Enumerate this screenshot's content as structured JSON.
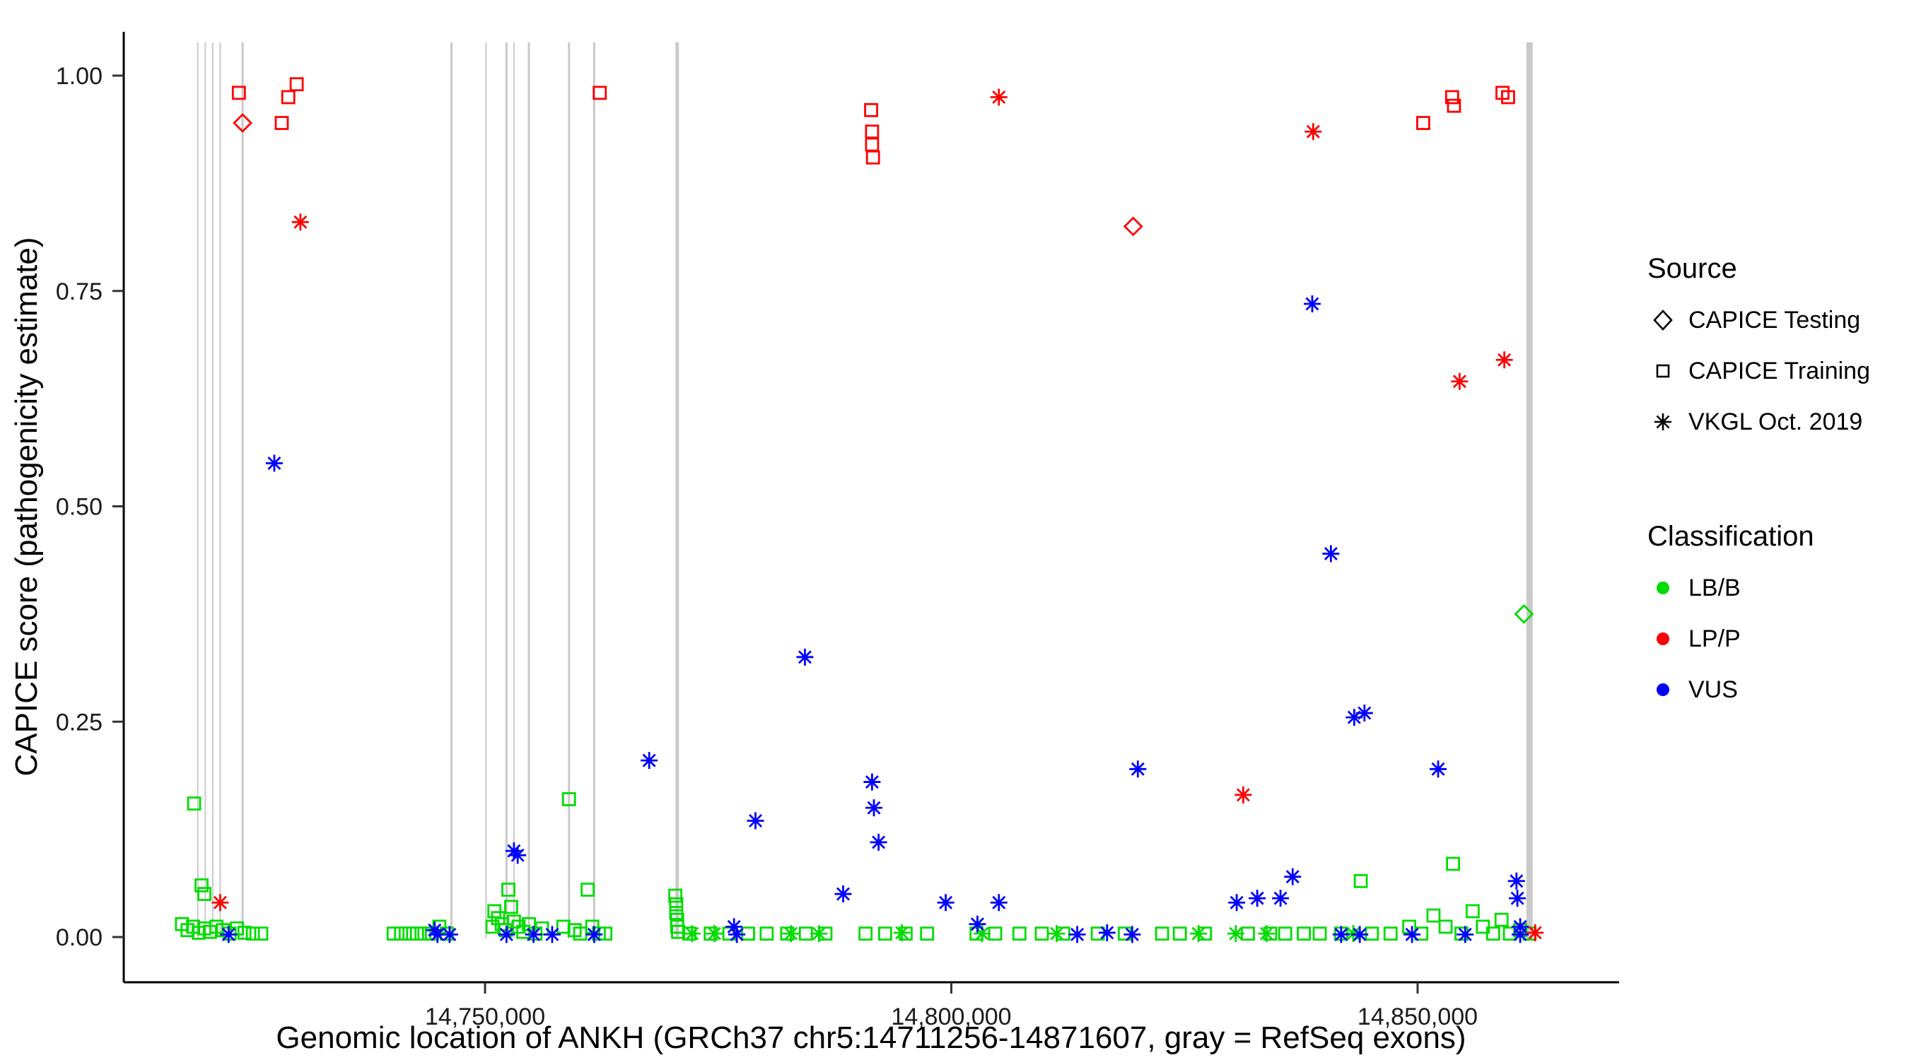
{
  "legend": {
    "source": {
      "title": "Source",
      "items": [
        {
          "label": "CAPICE Testing",
          "shape": "diamond"
        },
        {
          "label": "CAPICE Training",
          "shape": "square"
        },
        {
          "label": "VKGL Oct. 2019",
          "shape": "asterisk"
        }
      ]
    },
    "classification": {
      "title": "Classification",
      "items": [
        {
          "label": "LB/B",
          "color": "#00DC00"
        },
        {
          "label": "LP/P",
          "color": "#FF0000"
        },
        {
          "label": "VUS",
          "color": "#0000FF"
        }
      ]
    }
  },
  "chart_data": {
    "type": "scatter",
    "title": "",
    "xlabel": "Genomic location of ANKH (GRCh37 chr5:14711256-14871607, gray = RefSeq exons)",
    "ylabel": "CAPICE score (pathogenicity estimate)",
    "xlim": [
      14711256,
      14871607
    ],
    "ylim": [
      0,
      1
    ],
    "grid": false,
    "legend_position": "right",
    "x_ticks": [
      {
        "value": 14750000,
        "label": "14,750,000"
      },
      {
        "value": 14800000,
        "label": "14,800,000"
      },
      {
        "value": 14850000,
        "label": "14,850,000"
      }
    ],
    "y_ticks": [
      {
        "value": 0.0,
        "label": "0.00"
      },
      {
        "value": 0.25,
        "label": "0.25"
      },
      {
        "value": 0.5,
        "label": "0.50"
      },
      {
        "value": 0.75,
        "label": "0.75"
      },
      {
        "value": 1.0,
        "label": "1.00"
      }
    ],
    "exon_color": "#C9C9C9",
    "exons": [
      {
        "pos": 14719200,
        "width": 2
      },
      {
        "pos": 14720000,
        "width": 2
      },
      {
        "pos": 14720800,
        "width": 2
      },
      {
        "pos": 14721600,
        "width": 2
      },
      {
        "pos": 14724000,
        "width": 3
      },
      {
        "pos": 14746400,
        "width": 3
      },
      {
        "pos": 14750100,
        "width": 2
      },
      {
        "pos": 14752300,
        "width": 3
      },
      {
        "pos": 14753100,
        "width": 2
      },
      {
        "pos": 14754700,
        "width": 3
      },
      {
        "pos": 14759000,
        "width": 3
      },
      {
        "pos": 14761700,
        "width": 3
      },
      {
        "pos": 14770600,
        "width": 5
      },
      {
        "pos": 14862000,
        "width": 9
      }
    ],
    "series": [
      {
        "id": "training-lbb",
        "source": "CAPICE Training",
        "classification": "LB/B",
        "shape": "square",
        "color": "#00DC00",
        "points": [
          [
            14718800,
            0.155
          ],
          [
            14719600,
            0.06
          ],
          [
            14719900,
            0.05
          ],
          [
            14717500,
            0.015
          ],
          [
            14718100,
            0.008
          ],
          [
            14718700,
            0.012
          ],
          [
            14719300,
            0.005
          ],
          [
            14719900,
            0.01
          ],
          [
            14720500,
            0.006
          ],
          [
            14721200,
            0.012
          ],
          [
            14721900,
            0.008
          ],
          [
            14722600,
            0.004
          ],
          [
            14723400,
            0.01
          ],
          [
            14724200,
            0.005
          ],
          [
            14725100,
            0.004
          ],
          [
            14726000,
            0.004
          ],
          [
            14740200,
            0.004
          ],
          [
            14741000,
            0.004
          ],
          [
            14741900,
            0.004
          ],
          [
            14742700,
            0.004
          ],
          [
            14743500,
            0.004
          ],
          [
            14744300,
            0.004
          ],
          [
            14745100,
            0.012
          ],
          [
            14745900,
            0.004
          ],
          [
            14750800,
            0.012
          ],
          [
            14751000,
            0.03
          ],
          [
            14751400,
            0.022
          ],
          [
            14751800,
            0.015
          ],
          [
            14752200,
            0.008
          ],
          [
            14752500,
            0.055
          ],
          [
            14752800,
            0.035
          ],
          [
            14753100,
            0.018
          ],
          [
            14753600,
            0.012
          ],
          [
            14754100,
            0.006
          ],
          [
            14754700,
            0.015
          ],
          [
            14755400,
            0.004
          ],
          [
            14756100,
            0.01
          ],
          [
            14758400,
            0.012
          ],
          [
            14759000,
            0.16
          ],
          [
            14759600,
            0.008
          ],
          [
            14760200,
            0.004
          ],
          [
            14761000,
            0.055
          ],
          [
            14761500,
            0.012
          ],
          [
            14762200,
            0.004
          ],
          [
            14762900,
            0.004
          ],
          [
            14770400,
            0.048
          ],
          [
            14770500,
            0.038
          ],
          [
            14770500,
            0.028
          ],
          [
            14770600,
            0.02
          ],
          [
            14770600,
            0.012
          ],
          [
            14770700,
            0.006
          ],
          [
            14771900,
            0.004
          ],
          [
            14774200,
            0.004
          ],
          [
            14776200,
            0.004
          ],
          [
            14778200,
            0.004
          ],
          [
            14780200,
            0.004
          ],
          [
            14782400,
            0.004
          ],
          [
            14784400,
            0.004
          ],
          [
            14786500,
            0.004
          ],
          [
            14790800,
            0.004
          ],
          [
            14792900,
            0.004
          ],
          [
            14795100,
            0.004
          ],
          [
            14797400,
            0.004
          ],
          [
            14802700,
            0.004
          ],
          [
            14804700,
            0.004
          ],
          [
            14807300,
            0.004
          ],
          [
            14809700,
            0.004
          ],
          [
            14812000,
            0.004
          ],
          [
            14815700,
            0.004
          ],
          [
            14818600,
            0.004
          ],
          [
            14822600,
            0.004
          ],
          [
            14824500,
            0.004
          ],
          [
            14827200,
            0.004
          ],
          [
            14831800,
            0.004
          ],
          [
            14834200,
            0.004
          ],
          [
            14835800,
            0.004
          ],
          [
            14837800,
            0.004
          ],
          [
            14839500,
            0.004
          ],
          [
            14841800,
            0.004
          ],
          [
            14843900,
            0.065
          ],
          [
            14845100,
            0.004
          ],
          [
            14847100,
            0.004
          ],
          [
            14849100,
            0.012
          ],
          [
            14850400,
            0.004
          ],
          [
            14851700,
            0.025
          ],
          [
            14853000,
            0.012
          ],
          [
            14853800,
            0.085
          ],
          [
            14854700,
            0.004
          ],
          [
            14855900,
            0.03
          ],
          [
            14857000,
            0.012
          ],
          [
            14858100,
            0.004
          ],
          [
            14859000,
            0.02
          ],
          [
            14859900,
            0.004
          ],
          [
            14861000,
            0.008
          ],
          [
            14862000,
            0.004
          ]
        ]
      },
      {
        "id": "vkgl-lbb",
        "source": "VKGL Oct. 2019",
        "classification": "LB/B",
        "shape": "asterisk",
        "color": "#00DC00",
        "points": [
          [
            14772200,
            0.004
          ],
          [
            14774600,
            0.004
          ],
          [
            14782800,
            0.004
          ],
          [
            14785800,
            0.004
          ],
          [
            14794700,
            0.005
          ],
          [
            14803300,
            0.004
          ],
          [
            14811300,
            0.004
          ],
          [
            14826500,
            0.004
          ],
          [
            14830500,
            0.004
          ],
          [
            14833800,
            0.004
          ],
          [
            14843100,
            0.004
          ]
        ]
      },
      {
        "id": "training-lpp",
        "source": "CAPICE Training",
        "classification": "LP/P",
        "shape": "square",
        "color": "#FF0000",
        "points": [
          [
            14723600,
            0.98
          ],
          [
            14728200,
            0.945
          ],
          [
            14728900,
            0.975
          ],
          [
            14729800,
            0.99
          ],
          [
            14762300,
            0.98
          ],
          [
            14791400,
            0.96
          ],
          [
            14791500,
            0.935
          ],
          [
            14791500,
            0.92
          ],
          [
            14791600,
            0.905
          ],
          [
            14850600,
            0.945
          ],
          [
            14853700,
            0.975
          ],
          [
            14853900,
            0.965
          ],
          [
            14859100,
            0.98
          ],
          [
            14859700,
            0.975
          ]
        ]
      },
      {
        "id": "vkgl-vus",
        "source": "VKGL Oct. 2019",
        "classification": "VUS",
        "shape": "asterisk",
        "color": "#0000FF",
        "points": [
          [
            14727400,
            0.55
          ],
          [
            14753100,
            0.1
          ],
          [
            14753500,
            0.095
          ],
          [
            14767600,
            0.205
          ],
          [
            14779000,
            0.135
          ],
          [
            14784300,
            0.325
          ],
          [
            14791500,
            0.18
          ],
          [
            14791700,
            0.15
          ],
          [
            14792200,
            0.11
          ],
          [
            14788400,
            0.05
          ],
          [
            14799400,
            0.04
          ],
          [
            14802800,
            0.015
          ],
          [
            14805100,
            0.04
          ],
          [
            14820000,
            0.195
          ],
          [
            14838700,
            0.735
          ],
          [
            14840700,
            0.445
          ],
          [
            14843200,
            0.255
          ],
          [
            14844300,
            0.26
          ],
          [
            14852200,
            0.195
          ],
          [
            14860600,
            0.065
          ],
          [
            14860700,
            0.045
          ],
          [
            14861000,
            0.012
          ],
          [
            14722500,
            0.003
          ],
          [
            14744600,
            0.008
          ],
          [
            14744900,
            0.003
          ],
          [
            14746200,
            0.003
          ],
          [
            14752300,
            0.003
          ],
          [
            14755200,
            0.003
          ],
          [
            14757200,
            0.003
          ],
          [
            14761700,
            0.003
          ],
          [
            14776700,
            0.012
          ],
          [
            14777000,
            0.003
          ],
          [
            14813500,
            0.003
          ],
          [
            14816700,
            0.005
          ],
          [
            14819400,
            0.003
          ],
          [
            14830600,
            0.04
          ],
          [
            14832800,
            0.045
          ],
          [
            14835300,
            0.045
          ],
          [
            14836600,
            0.07
          ],
          [
            14841800,
            0.003
          ],
          [
            14843800,
            0.003
          ],
          [
            14849400,
            0.003
          ],
          [
            14855100,
            0.003
          ],
          [
            14861000,
            0.003
          ]
        ]
      },
      {
        "id": "vkgl-lpp",
        "source": "VKGL Oct. 2019",
        "classification": "LP/P",
        "shape": "asterisk",
        "color": "#FF0000",
        "points": [
          [
            14730200,
            0.83
          ],
          [
            14805100,
            0.975
          ],
          [
            14838800,
            0.935
          ],
          [
            14854500,
            0.645
          ],
          [
            14859300,
            0.67
          ],
          [
            14831300,
            0.165
          ],
          [
            14721600,
            0.04
          ],
          [
            14862600,
            0.005
          ]
        ]
      },
      {
        "id": "testing-lpp",
        "source": "CAPICE Testing",
        "classification": "LP/P",
        "shape": "diamond",
        "color": "#FF0000",
        "points": [
          [
            14724000,
            0.945
          ],
          [
            14819500,
            0.825
          ]
        ]
      },
      {
        "id": "testing-lbb",
        "source": "CAPICE Testing",
        "classification": "LB/B",
        "shape": "diamond",
        "color": "#00DC00",
        "points": [
          [
            14861400,
            0.375
          ]
        ]
      }
    ]
  }
}
